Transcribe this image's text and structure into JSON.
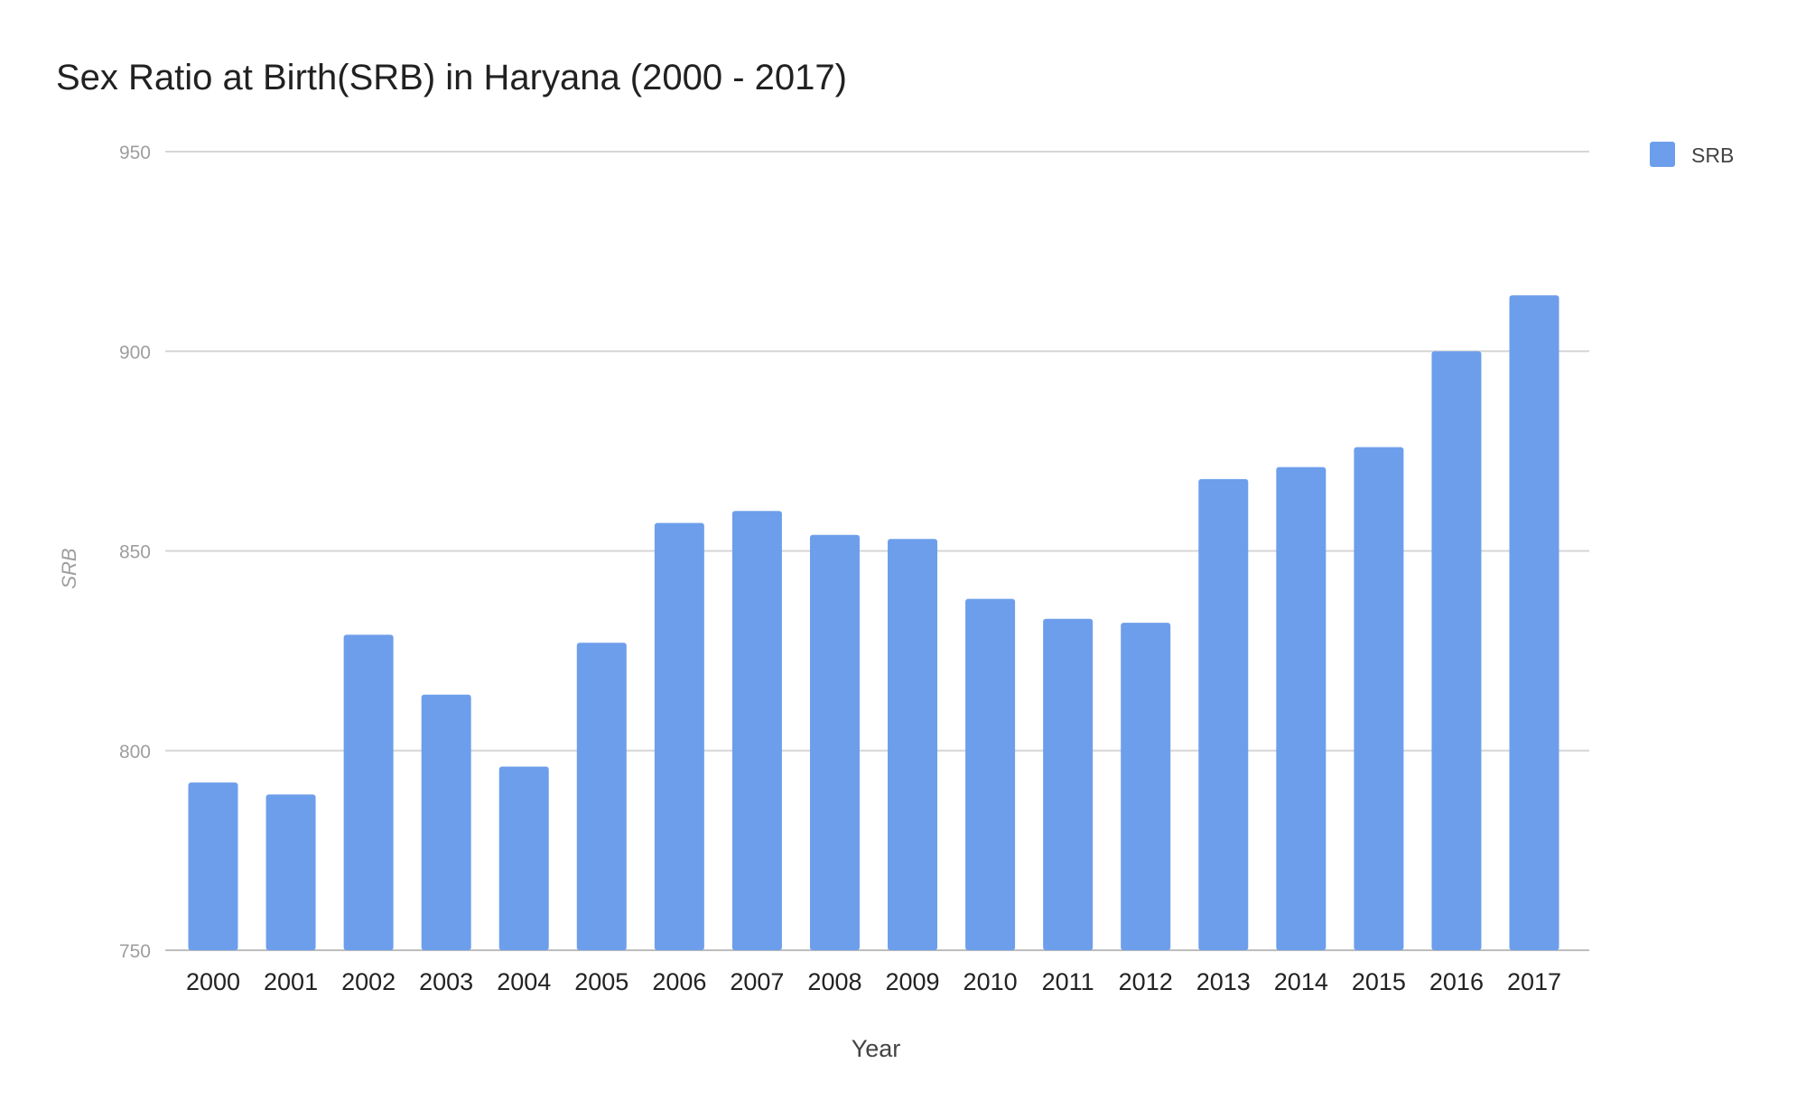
{
  "chart_data": {
    "type": "bar",
    "title": "Sex Ratio at Birth(SRB) in Haryana (2000 - 2017)",
    "xlabel": "Year",
    "ylabel": "SRB",
    "ylim": [
      750,
      950
    ],
    "yticks": [
      "750",
      "800",
      "850",
      "900",
      "950"
    ],
    "grid": true,
    "legend_position": "top-right",
    "categories": [
      "2000",
      "2001",
      "2002",
      "2003",
      "2004",
      "2005",
      "2006",
      "2007",
      "2008",
      "2009",
      "2010",
      "2011",
      "2012",
      "2013",
      "2014",
      "2015",
      "2016",
      "2017"
    ],
    "series": [
      {
        "name": "SRB",
        "color": "#6d9eeb",
        "values": [
          792,
          789,
          829,
          814,
          796,
          827,
          857,
          860,
          854,
          853,
          838,
          833,
          832,
          868,
          871,
          876,
          900,
          914
        ]
      }
    ]
  }
}
